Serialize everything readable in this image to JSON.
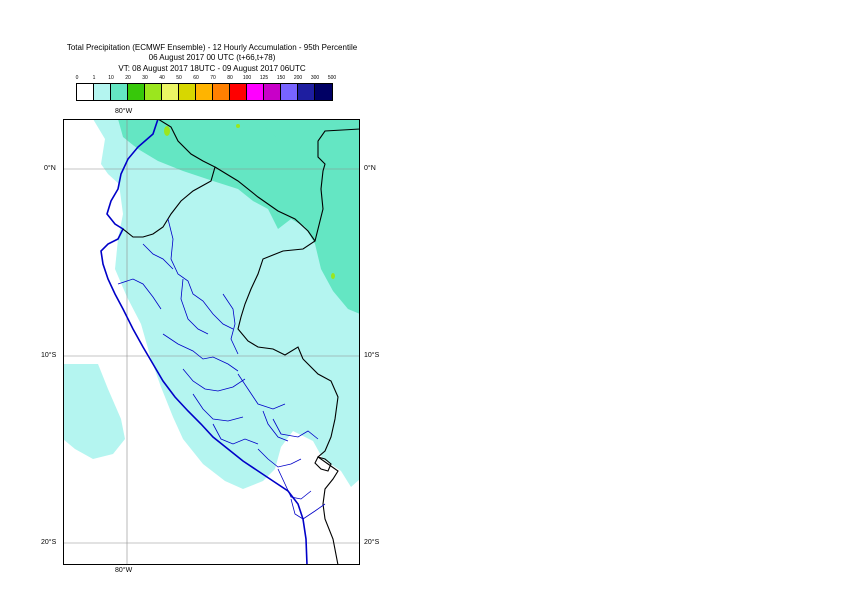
{
  "header": {
    "line1": "Total Precipitation (ECMWF Ensemble) - 12 Hourly Accumulation - 95th Percentile",
    "line2": "06 August 2017 00 UTC (t+66,t+78)",
    "line3": "VT: 08 August 2017 18UTC - 09 August 2017 06UTC"
  },
  "legend": {
    "thresholds": [
      "0",
      "1",
      "10",
      "20",
      "30",
      "40",
      "50",
      "60",
      "70",
      "80",
      "100",
      "125",
      "150",
      "200",
      "300",
      "500"
    ],
    "colors": [
      "#ffffff",
      "#b4f5f0",
      "#64e6c3",
      "#37c80a",
      "#9be61e",
      "#ebf564",
      "#d7d700",
      "#ffb400",
      "#ff8000",
      "#ff0000",
      "#ff00ff",
      "#c800c8",
      "#7864ff",
      "#1e1ea0",
      "#000064"
    ]
  },
  "map": {
    "colors": {
      "light": "#b4f5f0",
      "medium": "#64e6c3",
      "green": "#9be61e",
      "border": "#000000",
      "regions": "#0000c8",
      "grid": "#8c8c8c"
    },
    "top_lon_label": "80°W",
    "bottom_lon_label": "80°W",
    "lat_labels": [
      "0°N",
      "10°S",
      "20°S"
    ]
  }
}
